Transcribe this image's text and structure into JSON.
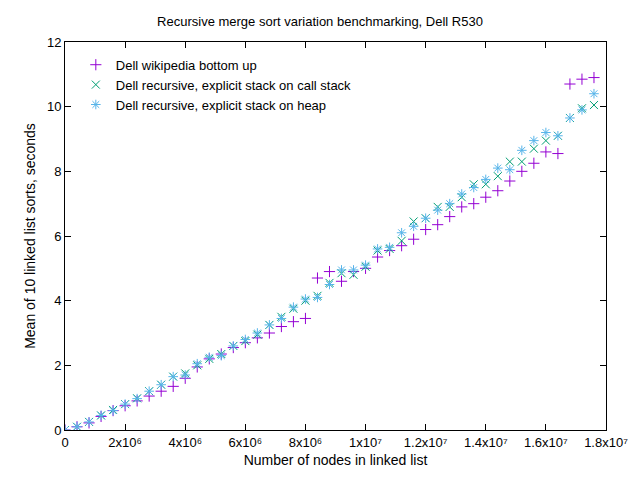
{
  "chart_data": {
    "type": "scatter",
    "title": "Recursive merge sort variation benchmarking, Dell R530",
    "x_label": "Number of nodes in linked list",
    "y_label": "Mean of 10 linked list sorts, seconds",
    "x": [
      0,
      400000,
      800000,
      1200000,
      1600000,
      2000000,
      2400000,
      2800000,
      3200000,
      3600000,
      4000000,
      4400000,
      4800000,
      5200000,
      5600000,
      6000000,
      6400000,
      6800000,
      7200000,
      7600000,
      8000000,
      8400000,
      8800000,
      9200000,
      9600000,
      10000000,
      10400000,
      10800000,
      11200000,
      11600000,
      12000000,
      12400000,
      12800000,
      13200000,
      13600000,
      14000000,
      14400000,
      14800000,
      15200000,
      15600000,
      16000000,
      16400000,
      16800000,
      17200000,
      17600000
    ],
    "series": [
      {
        "name": "Dell wikipedia bottom up",
        "color": "#9400d3",
        "marker": "plus",
        "values": [
          0.0,
          0.1,
          0.22,
          0.42,
          0.6,
          0.75,
          0.9,
          1.05,
          1.2,
          1.35,
          1.6,
          1.95,
          2.2,
          2.35,
          2.55,
          2.7,
          2.85,
          3.0,
          3.2,
          3.35,
          3.45,
          4.7,
          4.9,
          4.6,
          4.9,
          5.0,
          5.35,
          5.55,
          5.7,
          5.9,
          6.2,
          6.35,
          6.6,
          6.9,
          7.0,
          7.2,
          7.4,
          7.7,
          8.0,
          8.25,
          8.6,
          8.55,
          10.7,
          10.85,
          10.9
        ]
      },
      {
        "name": "Dell recursive, explicit stack on call stack",
        "color": "#009e73",
        "marker": "x",
        "values": [
          0.0,
          0.1,
          0.25,
          0.45,
          0.62,
          0.8,
          0.98,
          1.2,
          1.4,
          1.65,
          1.75,
          2.0,
          2.2,
          2.35,
          2.6,
          2.75,
          2.95,
          3.25,
          3.5,
          3.75,
          4.0,
          4.15,
          4.55,
          4.85,
          4.8,
          5.05,
          5.55,
          5.6,
          5.85,
          6.45,
          6.55,
          6.9,
          6.9,
          7.2,
          7.6,
          7.6,
          7.85,
          8.3,
          8.3,
          8.7,
          8.95,
          9.1,
          9.65,
          9.95,
          10.05
        ]
      },
      {
        "name": "Dell recursive, explicit stack on heap",
        "color": "#56b4e9",
        "marker": "asterisk",
        "values": [
          0.0,
          0.1,
          0.25,
          0.45,
          0.6,
          0.8,
          0.97,
          1.2,
          1.4,
          1.65,
          1.7,
          2.05,
          2.25,
          2.3,
          2.6,
          2.8,
          3.0,
          3.25,
          3.45,
          3.8,
          4.05,
          4.1,
          4.5,
          4.95,
          4.95,
          5.1,
          5.6,
          5.65,
          6.1,
          6.3,
          6.55,
          6.8,
          7.0,
          7.3,
          7.5,
          7.75,
          8.1,
          8.05,
          8.65,
          8.95,
          9.2,
          9.1,
          9.65,
          9.9,
          10.4
        ]
      }
    ],
    "xlim": [
      0,
      18000000
    ],
    "xticks": [
      0,
      {
        "value": 2000000,
        "label": "2x10⁶"
      },
      {
        "value": 4000000,
        "label": "4x10⁶"
      },
      {
        "value": 6000000,
        "label": "6x10⁶"
      },
      {
        "value": 8000000,
        "label": "8x10⁶"
      },
      {
        "value": 10000000,
        "label": "1x10⁷"
      },
      {
        "value": 12000000,
        "label": "1.2x10⁷"
      },
      {
        "value": 14000000,
        "label": "1.4x10⁷"
      },
      {
        "value": 16000000,
        "label": "1.6x10⁷"
      },
      {
        "value": 18000000,
        "label": "1.8x10⁷"
      }
    ],
    "ylim": [
      0,
      12
    ],
    "yticks": [
      0,
      2,
      4,
      6,
      8,
      10,
      12
    ],
    "grid": false,
    "legend": "upper left"
  }
}
